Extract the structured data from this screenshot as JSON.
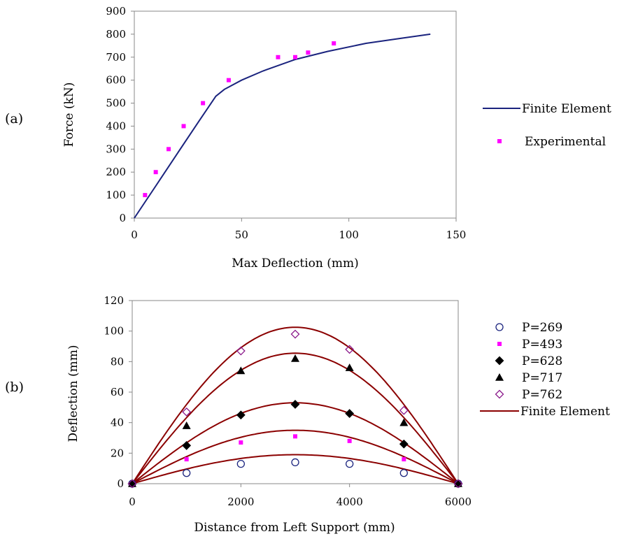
{
  "chart_data": [
    {
      "panel_label": "(a)",
      "type": "line",
      "title": "",
      "xlabel": "Max Deflection (mm)",
      "ylabel": "Force (kN)",
      "xlim": [
        0,
        150
      ],
      "ylim": [
        0,
        900
      ],
      "xticks": [
        0,
        50,
        100,
        150
      ],
      "yticks": [
        0,
        100,
        200,
        300,
        400,
        500,
        600,
        700,
        800,
        900
      ],
      "grid": false,
      "legend_position": "right",
      "series": [
        {
          "name": "Finite Element",
          "kind": "line",
          "color": "#1a237e",
          "points": [
            [
              0,
              0
            ],
            [
              10,
              140
            ],
            [
              20,
              280
            ],
            [
              30,
              420
            ],
            [
              38,
              530
            ],
            [
              42,
              560
            ],
            [
              50,
              600
            ],
            [
              60,
              640
            ],
            [
              75,
              690
            ],
            [
              90,
              725
            ],
            [
              108,
              760
            ],
            [
              125,
              783
            ],
            [
              138,
              800
            ]
          ]
        },
        {
          "name": "Experimental",
          "kind": "marker",
          "marker": "square",
          "color": "#ff00ff",
          "points": [
            [
              5,
              100
            ],
            [
              10,
              200
            ],
            [
              16,
              300
            ],
            [
              23,
              400
            ],
            [
              32,
              500
            ],
            [
              44,
              600
            ],
            [
              67,
              700
            ],
            [
              75,
              700
            ],
            [
              81,
              720
            ],
            [
              93,
              760
            ]
          ]
        }
      ]
    },
    {
      "panel_label": "(b)",
      "type": "line",
      "title": "",
      "xlabel": "Distance from Left Support (mm)",
      "ylabel": "Deflection (mm)",
      "xlim": [
        0,
        6000
      ],
      "ylim": [
        0,
        120
      ],
      "xticks": [
        0,
        2000,
        4000,
        6000
      ],
      "yticks": [
        0,
        20,
        40,
        60,
        80,
        100,
        120
      ],
      "grid": false,
      "legend_position": "right",
      "fe_name": "Finite Element",
      "fe_color": "#8b0000",
      "series": [
        {
          "name": "P=269",
          "marker": "circle-open",
          "color": "#1a237e",
          "x": [
            0,
            1000,
            2000,
            3000,
            4000,
            5000,
            6000
          ],
          "values": [
            0,
            7,
            13,
            14,
            13,
            7,
            0
          ],
          "fe_peak": 19
        },
        {
          "name": "P=493",
          "marker": "square",
          "color": "#ff00ff",
          "x": [
            0,
            1000,
            2000,
            3000,
            4000,
            5000,
            6000
          ],
          "values": [
            0,
            16,
            27,
            31,
            28,
            16,
            0
          ],
          "fe_peak": 35
        },
        {
          "name": "P=628",
          "marker": "diamond",
          "color": "#000000",
          "x": [
            0,
            1000,
            2000,
            3000,
            4000,
            5000,
            6000
          ],
          "values": [
            0,
            25,
            45,
            52,
            46,
            26,
            0
          ],
          "fe_peak": 53
        },
        {
          "name": "P=717",
          "marker": "triangle",
          "color": "#000000",
          "x": [
            0,
            1000,
            2000,
            3000,
            4000,
            5000,
            6000
          ],
          "values": [
            0,
            38,
            74,
            82,
            76,
            40,
            0
          ],
          "fe_peak": 85.5
        },
        {
          "name": "P=762",
          "marker": "diamond-open",
          "color": "#8b1a8b",
          "x": [
            0,
            1000,
            2000,
            3000,
            4000,
            5000,
            6000
          ],
          "values": [
            0,
            47,
            87,
            98,
            88,
            48,
            0
          ],
          "fe_peak": 102.5
        }
      ]
    }
  ]
}
